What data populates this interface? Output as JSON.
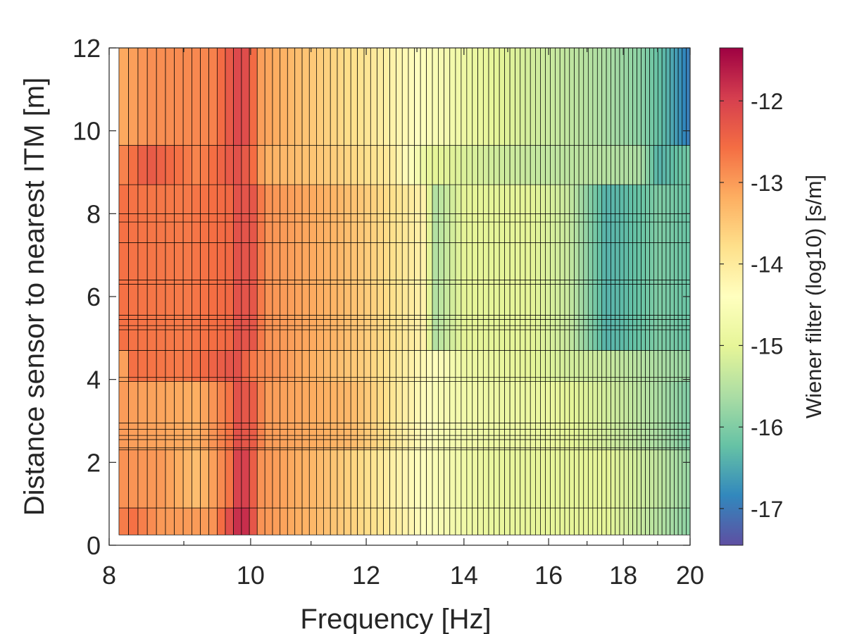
{
  "chart_data": {
    "type": "heatmap",
    "title": "",
    "xlabel": "Frequency [Hz]",
    "ylabel": "Distance sensor to nearest ITM [m]",
    "xscale": "log",
    "xlim": [
      8,
      20
    ],
    "ylim": [
      0,
      12
    ],
    "xticks": [
      8,
      10,
      12,
      14,
      16,
      18,
      20
    ],
    "yticks": [
      0,
      2,
      4,
      6,
      8,
      10,
      12
    ],
    "x_bins": {
      "start": 8.125,
      "end": 20,
      "count": 96
    },
    "y_edges": [
      0.25,
      0.9,
      2.3,
      2.35,
      2.55,
      2.65,
      2.8,
      2.95,
      3.95,
      4.05,
      4.7,
      5.2,
      5.3,
      5.45,
      5.55,
      6.3,
      6.4,
      7.3,
      7.8,
      8.0,
      8.7,
      9.65,
      12.0
    ],
    "bands": [
      {
        "y": [
          0.25,
          0.9
        ],
        "anchors": [
          [
            8.1,
            -12.8
          ],
          [
            8.3,
            -12.6
          ],
          [
            8.7,
            -13.0
          ],
          [
            9.4,
            -13.0
          ],
          [
            9.8,
            -11.8
          ],
          [
            10.0,
            -11.8
          ],
          [
            10.1,
            -12.9
          ],
          [
            11.5,
            -13.5
          ],
          [
            12.5,
            -14.0
          ],
          [
            13.5,
            -14.6
          ],
          [
            14.5,
            -14.9
          ],
          [
            16.0,
            -15.0
          ],
          [
            17.5,
            -15.0
          ],
          [
            19.0,
            -15.5
          ],
          [
            20.0,
            -15.9
          ]
        ]
      },
      {
        "y": [
          0.9,
          2.3
        ],
        "anchors": [
          [
            8.1,
            -12.9
          ],
          [
            8.7,
            -13.0
          ],
          [
            9.2,
            -13.4
          ],
          [
            9.7,
            -12.6
          ],
          [
            9.8,
            -12.0
          ],
          [
            10.0,
            -12.0
          ],
          [
            10.1,
            -12.9
          ],
          [
            11.5,
            -13.5
          ],
          [
            12.5,
            -14.1
          ],
          [
            13.5,
            -14.6
          ],
          [
            14.5,
            -14.9
          ],
          [
            16.0,
            -15.0
          ],
          [
            17.5,
            -15.0
          ],
          [
            19.0,
            -15.4
          ],
          [
            20.0,
            -15.8
          ]
        ]
      },
      {
        "y": [
          2.3,
          4.0
        ],
        "anchors": [
          [
            8.1,
            -13.0
          ],
          [
            8.7,
            -13.1
          ],
          [
            9.2,
            -13.2
          ],
          [
            9.7,
            -12.6
          ],
          [
            9.8,
            -12.2
          ],
          [
            10.1,
            -12.4
          ],
          [
            10.2,
            -13.0
          ],
          [
            11.7,
            -13.3
          ],
          [
            12.0,
            -13.5
          ],
          [
            12.5,
            -13.9
          ],
          [
            13.5,
            -14.6
          ],
          [
            14.5,
            -14.8
          ],
          [
            16.0,
            -14.9
          ],
          [
            17.5,
            -15.2
          ],
          [
            19.0,
            -15.6
          ],
          [
            20.0,
            -16.0
          ]
        ]
      },
      {
        "y": [
          4.0,
          4.7
        ],
        "anchors": [
          [
            8.1,
            -13.4
          ],
          [
            8.3,
            -12.6
          ],
          [
            9.0,
            -12.7
          ],
          [
            9.8,
            -12.2
          ],
          [
            10.1,
            -12.8
          ],
          [
            11.0,
            -13.2
          ],
          [
            12.0,
            -13.6
          ],
          [
            13.0,
            -14.2
          ],
          [
            14.0,
            -14.8
          ],
          [
            15.5,
            -15.0
          ],
          [
            16.5,
            -15.2
          ],
          [
            17.5,
            -15.3
          ],
          [
            19.0,
            -15.6
          ],
          [
            20.0,
            -15.8
          ]
        ]
      },
      {
        "y": [
          4.7,
          8.7
        ],
        "anchors": [
          [
            8.1,
            -12.6
          ],
          [
            9.0,
            -12.7
          ],
          [
            9.7,
            -12.5
          ],
          [
            9.8,
            -12.2
          ],
          [
            10.1,
            -12.3
          ],
          [
            10.2,
            -12.9
          ],
          [
            11.5,
            -13.3
          ],
          [
            12.5,
            -13.8
          ],
          [
            13.2,
            -14.2
          ],
          [
            13.3,
            -15.6
          ],
          [
            14.0,
            -15.0
          ],
          [
            15.5,
            -15.0
          ],
          [
            16.5,
            -15.3
          ],
          [
            17.5,
            -16.4
          ],
          [
            18.5,
            -16.2
          ],
          [
            19.0,
            -16.0
          ],
          [
            20.0,
            -16.2
          ]
        ]
      },
      {
        "y": [
          8.7,
          9.65
        ],
        "anchors": [
          [
            8.1,
            -12.9
          ],
          [
            8.5,
            -12.3
          ],
          [
            9.2,
            -12.8
          ],
          [
            9.8,
            -12.2
          ],
          [
            10.0,
            -12.4
          ],
          [
            10.2,
            -13.2
          ],
          [
            11.5,
            -13.6
          ],
          [
            12.5,
            -14.0
          ],
          [
            13.3,
            -15.0
          ],
          [
            14.5,
            -15.2
          ],
          [
            16.0,
            -15.4
          ],
          [
            17.5,
            -15.5
          ],
          [
            18.5,
            -15.6
          ],
          [
            19.0,
            -16.4
          ],
          [
            20.0,
            -16.1
          ]
        ]
      },
      {
        "y": [
          9.65,
          12.0
        ],
        "anchors": [
          [
            8.1,
            -13.2
          ],
          [
            8.5,
            -12.9
          ],
          [
            9.4,
            -12.8
          ],
          [
            9.8,
            -12.1
          ],
          [
            10.0,
            -12.2
          ],
          [
            10.1,
            -13.0
          ],
          [
            11.0,
            -13.5
          ],
          [
            12.0,
            -13.9
          ],
          [
            13.0,
            -14.4
          ],
          [
            14.0,
            -14.8
          ],
          [
            15.5,
            -15.2
          ],
          [
            16.5,
            -15.4
          ],
          [
            17.5,
            -15.6
          ],
          [
            18.5,
            -15.9
          ],
          [
            19.3,
            -16.4
          ],
          [
            20.0,
            -17.0
          ]
        ]
      }
    ],
    "colorbar": {
      "label": "Wiener filter (log10) [s/m]",
      "range": [
        -17.45,
        -11.35
      ],
      "ticks": [
        -17,
        -16,
        -15,
        -14,
        -13,
        -12
      ],
      "tick_labels": [
        "-17",
        "-16",
        "-15",
        "-14",
        "-13",
        "-12"
      ],
      "colormap": "Spectral",
      "stops": [
        "#5e4fa2",
        "#3288bd",
        "#66c2a5",
        "#abdda4",
        "#e6f598",
        "#ffffbf",
        "#fee08b",
        "#fdae61",
        "#f46d43",
        "#d53e4f",
        "#9e0142"
      ]
    },
    "grid_line_color": "#000000"
  }
}
